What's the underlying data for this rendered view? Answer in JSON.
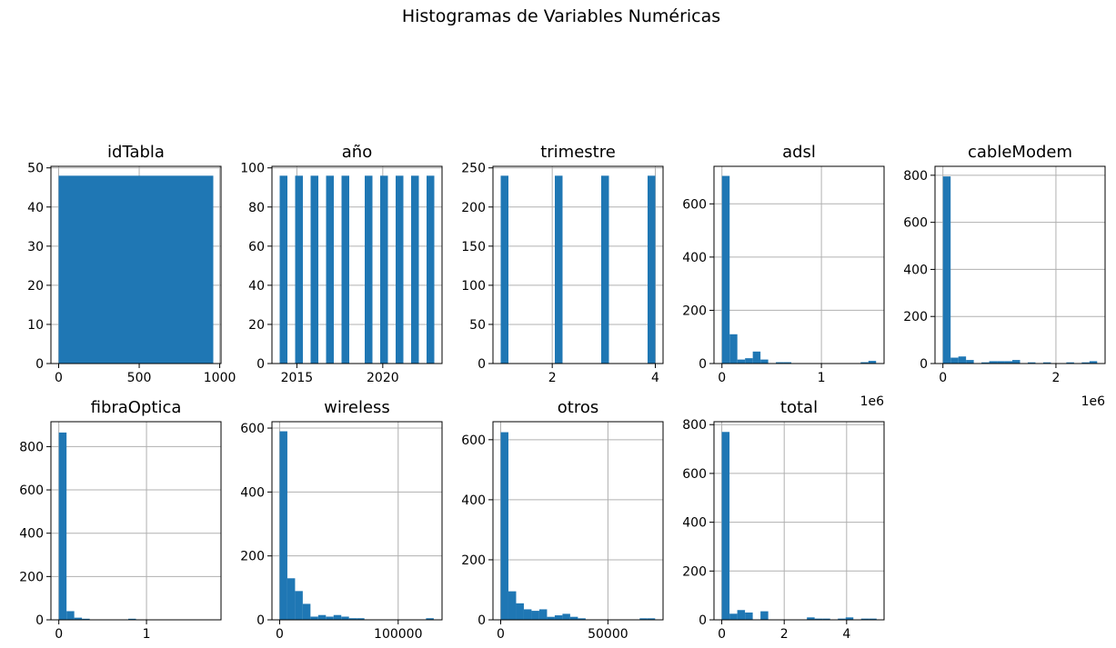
{
  "title": "Histogramas de Variables Numéricas",
  "colors": {
    "bar": "#1f77b4",
    "grid": "#b0b0b0",
    "axis": "#000000"
  },
  "chart_data": [
    {
      "type": "bar",
      "title": "idTabla",
      "grid": true,
      "xlim": [
        -48,
        1008
      ],
      "ylim": [
        0,
        50.4
      ],
      "xticks": [
        0,
        500,
        1000
      ],
      "xtick_labels": [
        "0",
        "500",
        "1000"
      ],
      "yticks": [
        0,
        10,
        20,
        30,
        40,
        50
      ],
      "ytick_labels": [
        "0",
        "10",
        "20",
        "30",
        "40",
        "50"
      ],
      "bin_start": 0,
      "bin_width": 48,
      "counts": [
        48,
        48,
        48,
        48,
        48,
        48,
        48,
        48,
        48,
        48,
        48,
        48,
        48,
        48,
        48,
        48,
        48,
        48,
        48,
        48
      ]
    },
    {
      "type": "bar",
      "title": "año",
      "grid": true,
      "xlim": [
        2013.55,
        2023.45
      ],
      "ylim": [
        0,
        100.8
      ],
      "xticks": [
        2015,
        2020
      ],
      "xtick_labels": [
        "2015",
        "2020"
      ],
      "yticks": [
        0,
        20,
        40,
        60,
        80,
        100
      ],
      "ytick_labels": [
        "0",
        "20",
        "40",
        "60",
        "80",
        "100"
      ],
      "bin_start": 2014,
      "bin_width": 0.45,
      "counts": [
        96,
        0,
        96,
        0,
        96,
        0,
        96,
        0,
        96,
        0,
        0,
        96,
        0,
        96,
        0,
        96,
        0,
        96,
        0,
        96
      ]
    },
    {
      "type": "bar",
      "title": "trimestre",
      "grid": true,
      "xlim": [
        0.85,
        4.15
      ],
      "ylim": [
        0,
        252
      ],
      "xticks": [
        2,
        4
      ],
      "xtick_labels": [
        "2",
        "4"
      ],
      "yticks": [
        0,
        50,
        100,
        150,
        200,
        250
      ],
      "ytick_labels": [
        "0",
        "50",
        "100",
        "150",
        "200",
        "250"
      ],
      "bin_start": 1,
      "bin_width": 0.15,
      "counts": [
        240,
        0,
        0,
        0,
        0,
        0,
        0,
        240,
        0,
        0,
        0,
        0,
        0,
        240,
        0,
        0,
        0,
        0,
        0,
        240
      ]
    },
    {
      "type": "bar",
      "title": "adsl",
      "grid": true,
      "offset_label": "1e6",
      "xlim": [
        -0.08,
        1.63
      ],
      "ylim": [
        0,
        741
      ],
      "xticks": [
        0,
        1
      ],
      "xtick_labels": [
        "0",
        "1"
      ],
      "yticks": [
        0,
        200,
        400,
        600
      ],
      "ytick_labels": [
        "0",
        "200",
        "400",
        "600"
      ],
      "bin_start": 0,
      "bin_width": 0.0775,
      "counts": [
        705,
        110,
        15,
        20,
        45,
        15,
        0,
        5,
        5,
        0,
        0,
        0,
        0,
        0,
        0,
        0,
        0,
        0,
        5,
        10
      ]
    },
    {
      "type": "bar",
      "title": "cableModem",
      "grid": true,
      "offset_label": "1e6",
      "xlim": [
        -0.14,
        2.87
      ],
      "ylim": [
        0,
        838
      ],
      "xticks": [
        0,
        2
      ],
      "xtick_labels": [
        "0",
        "2"
      ],
      "yticks": [
        0,
        200,
        400,
        600,
        800
      ],
      "ytick_labels": [
        "0",
        "200",
        "400",
        "600",
        "800"
      ],
      "bin_start": 0,
      "bin_width": 0.1365,
      "counts": [
        795,
        25,
        30,
        15,
        0,
        5,
        10,
        10,
        10,
        15,
        0,
        5,
        0,
        5,
        0,
        0,
        5,
        0,
        5,
        10
      ]
    },
    {
      "type": "bar",
      "title": "fibraOptica",
      "grid": true,
      "xlim": [
        -0.09,
        1.85
      ],
      "ylim": [
        0,
        915
      ],
      "xticks": [
        0,
        1
      ],
      "xtick_labels": [
        "0",
        "1"
      ],
      "yticks": [
        0,
        200,
        400,
        600,
        800
      ],
      "ytick_labels": [
        "0",
        "200",
        "400",
        "600",
        "800"
      ],
      "bin_start": 0,
      "bin_width": 0.088,
      "counts": [
        865,
        40,
        10,
        5,
        0,
        0,
        0,
        0,
        0,
        5,
        0,
        0,
        0,
        0,
        0,
        0,
        0,
        0,
        0,
        0
      ]
    },
    {
      "type": "bar",
      "title": "wireless",
      "grid": true,
      "xlim": [
        -6500,
        137000
      ],
      "ylim": [
        0,
        620
      ],
      "xticks": [
        0,
        100000
      ],
      "xtick_labels": [
        "0",
        "100000"
      ],
      "yticks": [
        0,
        200,
        400,
        600
      ],
      "ytick_labels": [
        "0",
        "200",
        "400",
        "600"
      ],
      "bin_start": 0,
      "bin_width": 6500,
      "counts": [
        590,
        130,
        90,
        50,
        10,
        15,
        10,
        15,
        10,
        5,
        5,
        0,
        0,
        0,
        0,
        0,
        0,
        0,
        0,
        5
      ]
    },
    {
      "type": "bar",
      "title": "otros",
      "grid": true,
      "xlim": [
        -3600,
        75700
      ],
      "ylim": [
        0,
        660
      ],
      "xticks": [
        0,
        50000
      ],
      "xtick_labels": [
        "0",
        "50000"
      ],
      "yticks": [
        0,
        200,
        400,
        600
      ],
      "ytick_labels": [
        "0",
        "200",
        "400",
        "600"
      ],
      "bin_start": 0,
      "bin_width": 3600,
      "counts": [
        625,
        95,
        55,
        35,
        30,
        35,
        10,
        15,
        20,
        10,
        5,
        0,
        0,
        0,
        0,
        0,
        0,
        0,
        5,
        5
      ]
    },
    {
      "type": "bar",
      "title": "total",
      "grid": true,
      "xlim": [
        -0.25,
        5.2
      ],
      "ylim": [
        0,
        812
      ],
      "xticks": [
        0,
        2,
        4
      ],
      "xtick_labels": [
        "0",
        "2",
        "4"
      ],
      "yticks": [
        0,
        200,
        400,
        600,
        800
      ],
      "ytick_labels": [
        "0",
        "200",
        "400",
        "600",
        "800"
      ],
      "bin_start": 0,
      "bin_width": 0.248,
      "counts": [
        770,
        25,
        40,
        30,
        0,
        35,
        0,
        0,
        0,
        0,
        0,
        10,
        5,
        5,
        0,
        5,
        10,
        0,
        5,
        5
      ]
    }
  ]
}
